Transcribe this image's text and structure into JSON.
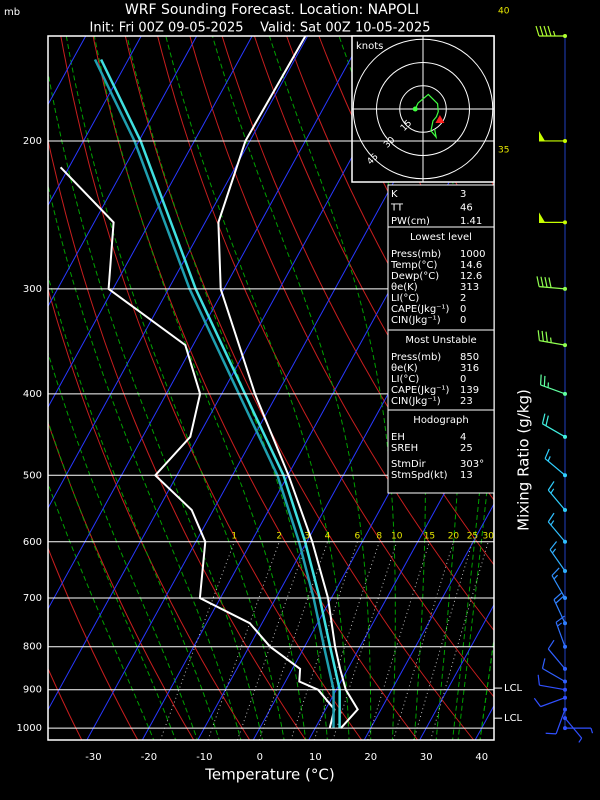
{
  "chart_data": {
    "type": "skew-t",
    "title": "WRF Sounding Forecast. Location: NAPOLI",
    "subtitle": "Init: Fri 00Z 09-05-2025    Valid: Sat 00Z 10-05-2025",
    "ylabel": "mb",
    "xlabel": "Temperature (°C)",
    "y2label": "Mixing Ratio (g/kg)",
    "xlim": [
      -37,
      43.4
    ],
    "ylim": [
      1033,
      150
    ],
    "log_y": true,
    "xticks": [
      -30,
      -20,
      -10,
      0,
      10,
      20,
      30,
      40
    ],
    "yticks": [
      200,
      300,
      400,
      500,
      600,
      700,
      800,
      900,
      1000
    ],
    "grid": true,
    "series": [
      {
        "color": "#ffffff",
        "pressure": [
          1000,
          950,
          900,
          850,
          800,
          700,
          600,
          500,
          400,
          300,
          250,
          200,
          150
        ],
        "values": [
          14.6,
          15.8,
          11.7,
          8.6,
          5.5,
          -0.6,
          -9.0,
          -19.9,
          -34.0,
          -50.6,
          -57.6,
          -60.8,
          -60.4
        ]
      },
      {
        "color": "#ffffff",
        "pressure": [
          1000,
          950,
          900,
          880,
          850,
          800,
          750,
          700,
          600,
          550,
          500,
          450,
          400,
          350,
          300,
          250,
          215
        ],
        "values": [
          12.6,
          11.6,
          6.7,
          2.5,
          1.4,
          -6.2,
          -12.2,
          -23.7,
          -28.3,
          -33.9,
          -43.9,
          -41.4,
          -43.9,
          -51.4,
          -70.8,
          -76.5,
          -91.5
        ]
      },
      {
        "color": "#40e0e0",
        "pressure": [
          1000,
          900,
          800,
          700,
          600,
          500,
          400,
          300,
          200,
          160
        ],
        "values": [
          14.4,
          10.6,
          4.6,
          -2.1,
          -10.3,
          -20.8,
          -35.8,
          -55.1,
          -79.7,
          -94.9
        ]
      },
      {
        "color": "#1f9fb0",
        "pressure": [
          1000,
          900,
          800,
          700,
          600,
          500,
          400,
          300,
          200,
          160
        ],
        "values": [
          13.3,
          9.5,
          3.5,
          -3.2,
          -11.4,
          -21.9,
          -36.9,
          -56.2,
          -80.8,
          -96.0
        ]
      }
    ],
    "mixing_ratio_labels": [
      1,
      2,
      3,
      4,
      6,
      8,
      10,
      15,
      20,
      25,
      30
    ],
    "moist_adiabat_labels": [
      35,
      40
    ],
    "lcl": [
      {
        "label": "LCL",
        "pressure": 896
      },
      {
        "label": "LCL",
        "pressure": 973
      }
    ],
    "winds": {
      "pressure": [
        150,
        200,
        250,
        300,
        350,
        400,
        450,
        500,
        550,
        600,
        650,
        700,
        750,
        800,
        850,
        880,
        900,
        920,
        950,
        973,
        1000
      ],
      "direction": [
        270,
        270,
        270,
        275,
        280,
        290,
        300,
        310,
        320,
        320,
        325,
        330,
        335,
        340,
        320,
        300,
        280,
        250,
        200,
        140,
        90
      ],
      "speed": [
        45,
        50,
        50,
        40,
        35,
        25,
        20,
        15,
        15,
        15,
        15,
        15,
        20,
        15,
        10,
        10,
        10,
        10,
        10,
        5,
        5
      ],
      "colors": [
        "#b0ff30",
        "#c8ff00",
        "#c8ff00",
        "#90ff50",
        "#90ff50",
        "#60ffa0",
        "#40f0e0",
        "#30d0ff",
        "#30d0ff",
        "#30c0ff",
        "#30b0ff",
        "#3090ff",
        "#3080ff",
        "#3070ff",
        "#3060ff",
        "#3060ff",
        "#3050ff",
        "#3050ff",
        "#3050ff",
        "#3050ff",
        "#3050ff"
      ]
    },
    "hodograph": {
      "title": "knots",
      "rings": [
        15,
        30,
        45
      ]
    }
  },
  "info_panel": [
    {
      "rows": [
        [
          "K",
          "3"
        ],
        [
          "TT",
          "46"
        ],
        [
          "PW(cm)",
          "1.41"
        ]
      ]
    },
    {
      "heading": "Lowest level",
      "rows": [
        [
          "Press(mb)",
          "1000"
        ],
        [
          "Temp(°C)",
          "14.6"
        ],
        [
          "Dewp(°C)",
          "12.6"
        ],
        [
          "θe(K)",
          "313"
        ],
        [
          "LI(°C)",
          "2"
        ],
        [
          "CAPE(Jkg⁻¹)",
          "0"
        ],
        [
          "CIN(Jkg⁻¹)",
          "0"
        ]
      ]
    },
    {
      "heading": "Most Unstable",
      "rows": [
        [
          "Press(mb)",
          "850"
        ],
        [
          "θe(K)",
          "316"
        ],
        [
          "LI(°C)",
          "0"
        ],
        [
          "CAPE(Jkg⁻¹)",
          "139"
        ],
        [
          "CIN(Jkg⁻¹)",
          "23"
        ]
      ]
    },
    {
      "heading": "Hodograph",
      "rows": [
        [
          "EH",
          "4"
        ],
        [
          "SREH",
          "25"
        ],
        [
          "StmDir",
          "303°"
        ],
        [
          "StmSpd(kt)",
          "13"
        ]
      ]
    }
  ]
}
